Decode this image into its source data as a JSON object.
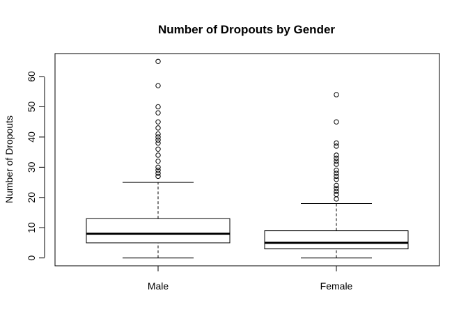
{
  "chart_data": {
    "type": "boxplot",
    "title": "Number of Dropouts by Gender",
    "xlabel": "",
    "ylabel": "Number of Dropouts",
    "ylim": [
      -2.6,
      67.6
    ],
    "yticks": [
      0,
      10,
      20,
      30,
      40,
      50,
      60
    ],
    "grid": false,
    "categories": [
      "Male",
      "Female"
    ],
    "boxes": [
      {
        "name": "Male",
        "whisker_low": 0,
        "q1": 5,
        "median": 8,
        "q3": 13,
        "whisker_high": 25,
        "outliers": [
          27,
          28,
          29,
          30,
          32,
          34,
          36,
          38,
          39,
          40,
          41,
          43,
          45,
          48,
          50,
          57,
          65
        ]
      },
      {
        "name": "Female",
        "whisker_low": 0,
        "q1": 3,
        "median": 5,
        "q3": 9,
        "whisker_high": 18,
        "outliers": [
          19.5,
          21,
          22,
          23,
          24,
          26,
          27,
          28,
          29,
          31,
          32,
          33,
          34,
          37,
          38,
          45,
          54
        ]
      }
    ]
  }
}
